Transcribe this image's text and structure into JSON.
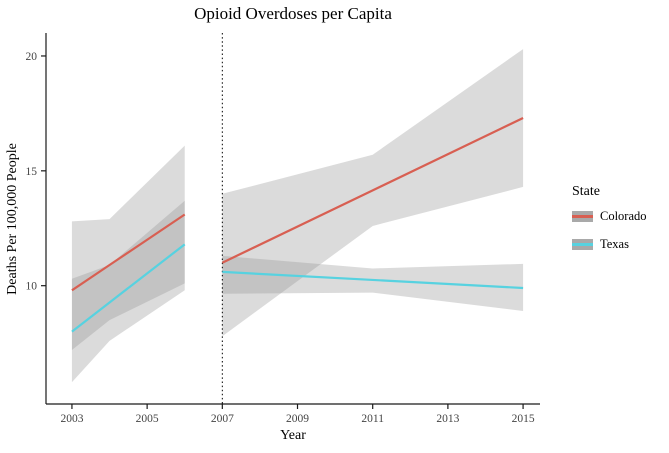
{
  "title": "Opioid Overdoses per Capita",
  "legend": {
    "title": "State",
    "entries": [
      {
        "label": "Colorado",
        "color": "#d85f52"
      },
      {
        "label": "Texas",
        "color": "#57d2e0"
      }
    ]
  },
  "chart_data": {
    "type": "line",
    "title": "Opioid Overdoses per Capita",
    "xlabel": "Year",
    "ylabel": "Deaths Per 100,000 People",
    "xlim": [
      2002.31,
      2015.45
    ],
    "ylim": [
      4.85,
      21.0
    ],
    "x_ticks": [
      2003,
      2005,
      2007,
      2009,
      2011,
      2013,
      2015
    ],
    "y_ticks": [
      10,
      15,
      20
    ],
    "grid": false,
    "legend_position": "right",
    "legend_title": "State",
    "vline": {
      "x": 2007,
      "style": "dotted",
      "color": "#000000"
    },
    "band_color": "#999999",
    "band_opacity": 0.35,
    "axis_color": "#1a1a1a",
    "series": [
      {
        "name": "Colorado",
        "color": "#d85f52",
        "segments": [
          {
            "x": [
              2003,
              2004,
              2006
            ],
            "y": [
              9.8,
              10.9,
              13.1
            ],
            "upper": [
              12.8,
              12.9,
              16.1
            ],
            "lower": [
              7.2,
              8.5,
              10.1
            ]
          },
          {
            "x": [
              2007,
              2011,
              2015
            ],
            "y": [
              11.0,
              14.15,
              17.3
            ],
            "upper": [
              14.0,
              15.7,
              20.3
            ],
            "lower": [
              7.8,
              12.6,
              14.3
            ]
          }
        ]
      },
      {
        "name": "Texas",
        "color": "#57d2e0",
        "segments": [
          {
            "x": [
              2003,
              2004,
              2006
            ],
            "y": [
              8.0,
              9.27,
              11.8
            ],
            "upper": [
              10.3,
              10.9,
              13.7
            ],
            "lower": [
              5.8,
              7.6,
              9.8
            ]
          },
          {
            "x": [
              2007,
              2011,
              2015
            ],
            "y": [
              10.6,
              10.25,
              9.9
            ],
            "upper": [
              11.3,
              10.75,
              10.95
            ],
            "lower": [
              9.65,
              9.7,
              8.9
            ]
          }
        ]
      }
    ]
  }
}
